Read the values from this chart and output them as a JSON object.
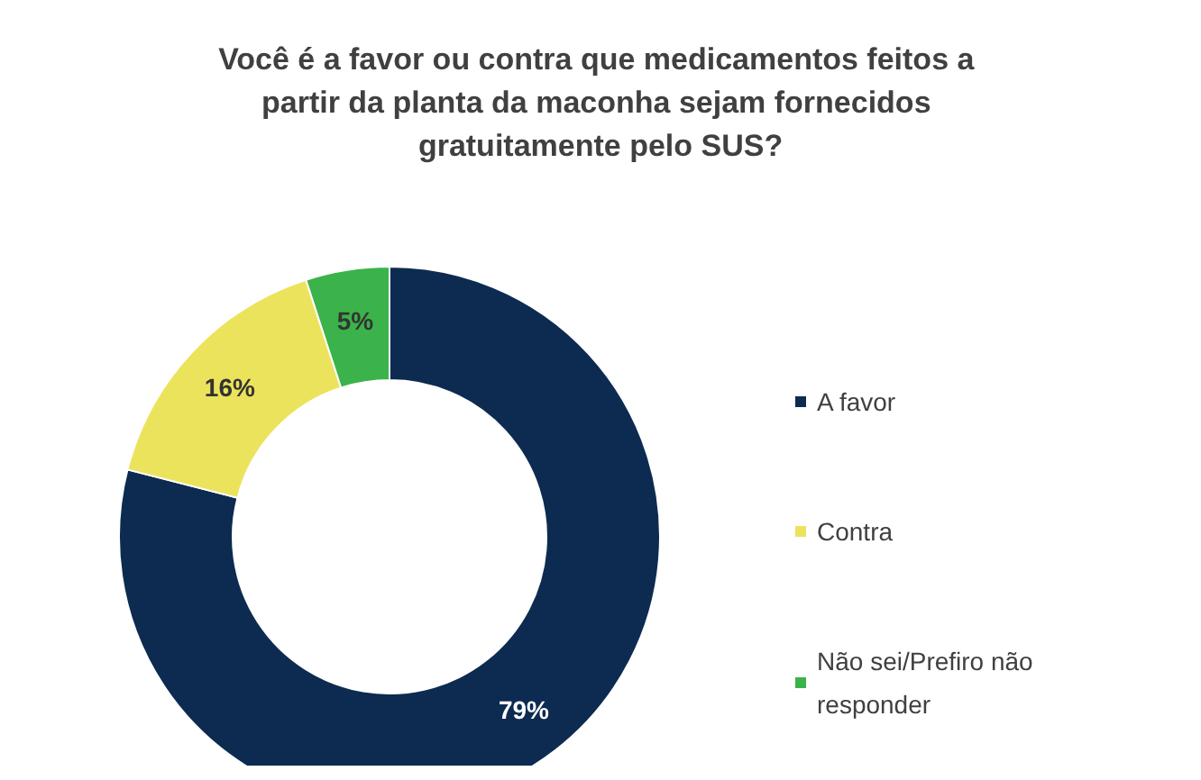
{
  "chart_data": {
    "type": "donut",
    "title": "Você é a favor ou contra que medicamentos feitos a partir da planta da maconha sejam fornecidos gratuitamente pelo SUS?",
    "categories": [
      "A favor",
      "Contra",
      "Não sei/Prefiro não responder"
    ],
    "values": [
      79,
      16,
      5
    ],
    "colors": [
      "#0d2b50",
      "#ece35c",
      "#3bb34a"
    ],
    "value_labels": [
      "79%",
      "16%",
      "5%"
    ],
    "legend": "right"
  }
}
